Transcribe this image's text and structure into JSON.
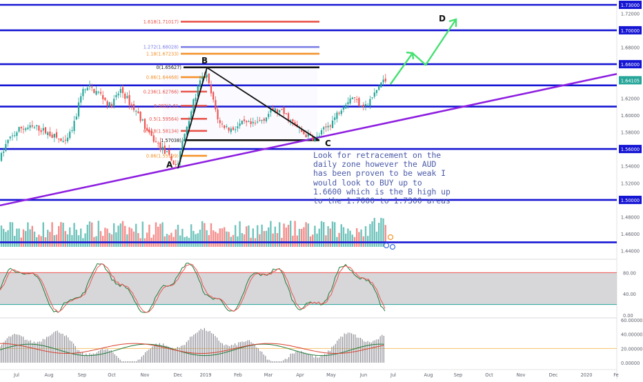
{
  "chart_data": [
    {
      "type": "candlestick",
      "pane": "price",
      "x_ticks": [
        "Jul",
        "Aug",
        "Sep",
        "Oct",
        "Nov",
        "Dec",
        "2019",
        "Feb",
        "Mar",
        "Apr",
        "May",
        "Jun",
        "Jul",
        "Aug",
        "Sep",
        "Oct",
        "Nov",
        "Dec",
        "2020",
        "Fe"
      ],
      "y_ticks": [
        "1.73000",
        "1.72000",
        "1.70000",
        "1.68000",
        "1.66000",
        "1.64000",
        "1.62000",
        "1.60000",
        "1.58000",
        "1.56000",
        "1.54000",
        "1.52000",
        "1.50000",
        "1.48000",
        "1.46000",
        "1.44000"
      ],
      "ylim": [
        1.435,
        1.735
      ],
      "last_price": "1.64105",
      "horizontal_levels": [
        "1.73000",
        "1.70000",
        "1.66000",
        "1.63500",
        "1.61000",
        "1.56000",
        "1.50000",
        "1.45000"
      ],
      "fib_levels": [
        {
          "label": "1.618(1.71017)",
          "value": 1.71017,
          "color": "#e8534a"
        },
        {
          "label": "1.272(1.68028)",
          "value": 1.68028,
          "color": "#7b7fe6"
        },
        {
          "label": "1.18(1.67233)",
          "value": 1.67233,
          "color": "#f5922a"
        },
        {
          "label": "0(1.65627)",
          "value": 1.65627,
          "color": "#111111"
        },
        {
          "label": "0.86(1.64468)",
          "value": 1.64468,
          "color": "#f5922a"
        },
        {
          "label": "0.236(1.62766)",
          "value": 1.62766,
          "color": "#e8534a"
        },
        {
          "label": "0.382(1.61",
          "value": 1.611,
          "color": "#e8534a"
        },
        {
          "label": "0.5(1.59564)",
          "value": 1.59564,
          "color": "#e8534a"
        },
        {
          "label": "0.618(1.58134)",
          "value": 1.58134,
          "color": "#e8534a"
        },
        {
          "label": "1.57038)",
          "value": 1.57038,
          "color": "#111111"
        },
        {
          "label": "0.86(1.55199)",
          "value": 1.55199,
          "color": "#f5922a"
        }
      ],
      "pattern_points": [
        {
          "label": "A",
          "x": "Dec 2018",
          "y": 1.5375
        },
        {
          "label": "B",
          "x": "Jan 2019",
          "y": 1.656
        },
        {
          "label": "C",
          "x": "May 2019",
          "y": 1.5705
        },
        {
          "label": "D",
          "x": "Aug 2019",
          "y": 1.71
        }
      ],
      "annotation": "Look for retracement on the daily zone however the AUD has been proven to be weak I would look to BUY up to 1.6600 which is the B high up to the 1.7000 to 1.7300 areas"
    },
    {
      "type": "line",
      "pane": "stochastic",
      "y_ticks": [
        "80.00",
        "40.00",
        "0.00"
      ],
      "ylim": [
        0,
        100
      ],
      "band": [
        20,
        80
      ]
    },
    {
      "type": "bar",
      "pane": "momentum",
      "y_ticks": [
        "60.00000",
        "40.00000",
        "20.00000",
        "0.00000"
      ],
      "ylim": [
        0,
        60
      ],
      "reference_level": 20
    }
  ],
  "colors": {
    "level_line": "#1515d4",
    "trend_line": "#8e1ee0",
    "bull": "#26a69a",
    "bear": "#ef5350",
    "projection": "#44e070",
    "stoch_band": "#c9c9cd",
    "axis_text": "#5d606b"
  }
}
